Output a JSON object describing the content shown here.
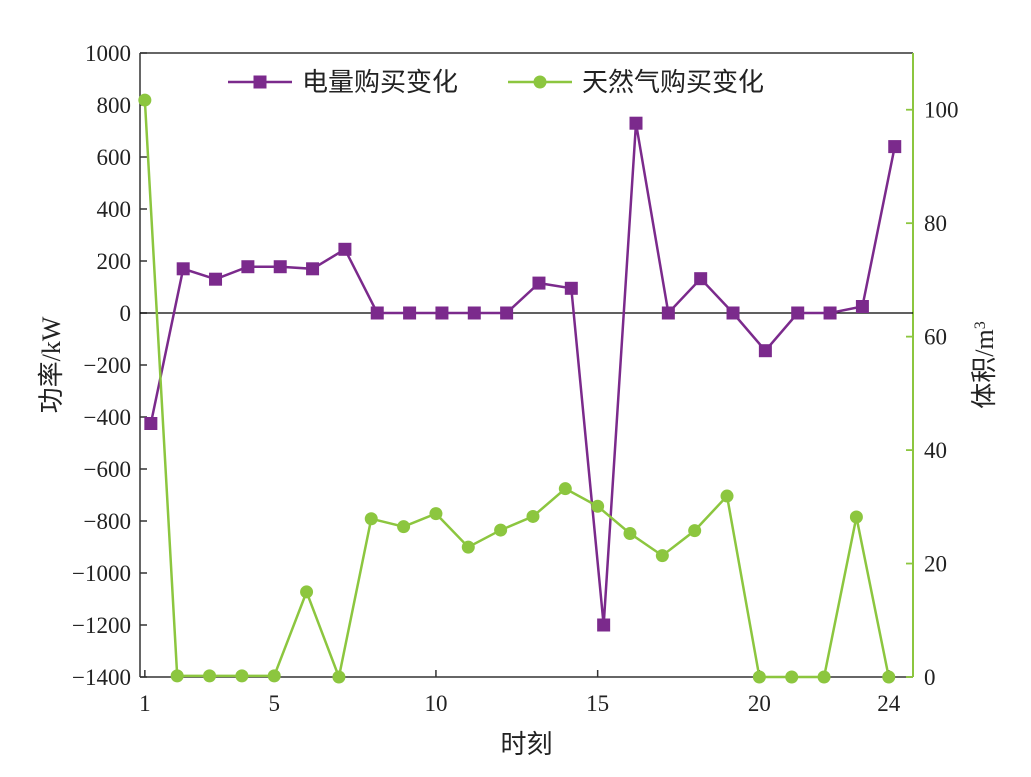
{
  "chart_data": {
    "type": "line",
    "x": [
      1,
      2,
      3,
      4,
      5,
      6,
      7,
      8,
      9,
      10,
      11,
      12,
      13,
      14,
      15,
      16,
      17,
      18,
      19,
      20,
      21,
      22,
      23,
      24
    ],
    "xticks": [
      1,
      5,
      10,
      15,
      20,
      24
    ],
    "xticks_labels": [
      "1",
      "5",
      "10",
      "15",
      "20",
      "24"
    ],
    "xlabel": "时刻",
    "ylabel_left": "功率/kW",
    "ylabel_right_main": "体积/m",
    "ylabel_right_sup": "3",
    "ylim_left": [
      -1400,
      1000
    ],
    "ylim_right": [
      0,
      110
    ],
    "yticks_left": [
      1000,
      800,
      600,
      400,
      200,
      0,
      -200,
      -400,
      -600,
      -800,
      -1000,
      -1200,
      -1400
    ],
    "yticks_left_labels": [
      "1000",
      "800",
      "600",
      "400",
      "200",
      "0",
      "−200",
      "−400",
      "−600",
      "−800",
      "−1000",
      "−1200",
      "−1400"
    ],
    "yticks_right": [
      100,
      80,
      60,
      40,
      20,
      0
    ],
    "yticks_right_labels": [
      "100",
      "80",
      "60",
      "40",
      "20",
      "0"
    ],
    "legend_position": "top",
    "zero_line": true,
    "series": [
      {
        "name": "电量购买变化",
        "axis": "left",
        "marker": "square",
        "color": "#7b2a8c",
        "values": [
          -425,
          170,
          130,
          178,
          178,
          170,
          245,
          0,
          0,
          0,
          0,
          0,
          115,
          95,
          -1200,
          730,
          0,
          132,
          0,
          -145,
          0,
          0,
          25,
          640
        ]
      },
      {
        "name": "天然气购买变化",
        "axis": "right",
        "marker": "circle",
        "color": "#8cc63f",
        "values": [
          101.7,
          0.2,
          0.2,
          0.2,
          0.2,
          15.0,
          0,
          27.9,
          26.5,
          28.8,
          22.9,
          25.9,
          28.3,
          33.2,
          30.1,
          25.3,
          21.4,
          25.8,
          31.9,
          0,
          0,
          0,
          28.2,
          0
        ]
      }
    ]
  }
}
